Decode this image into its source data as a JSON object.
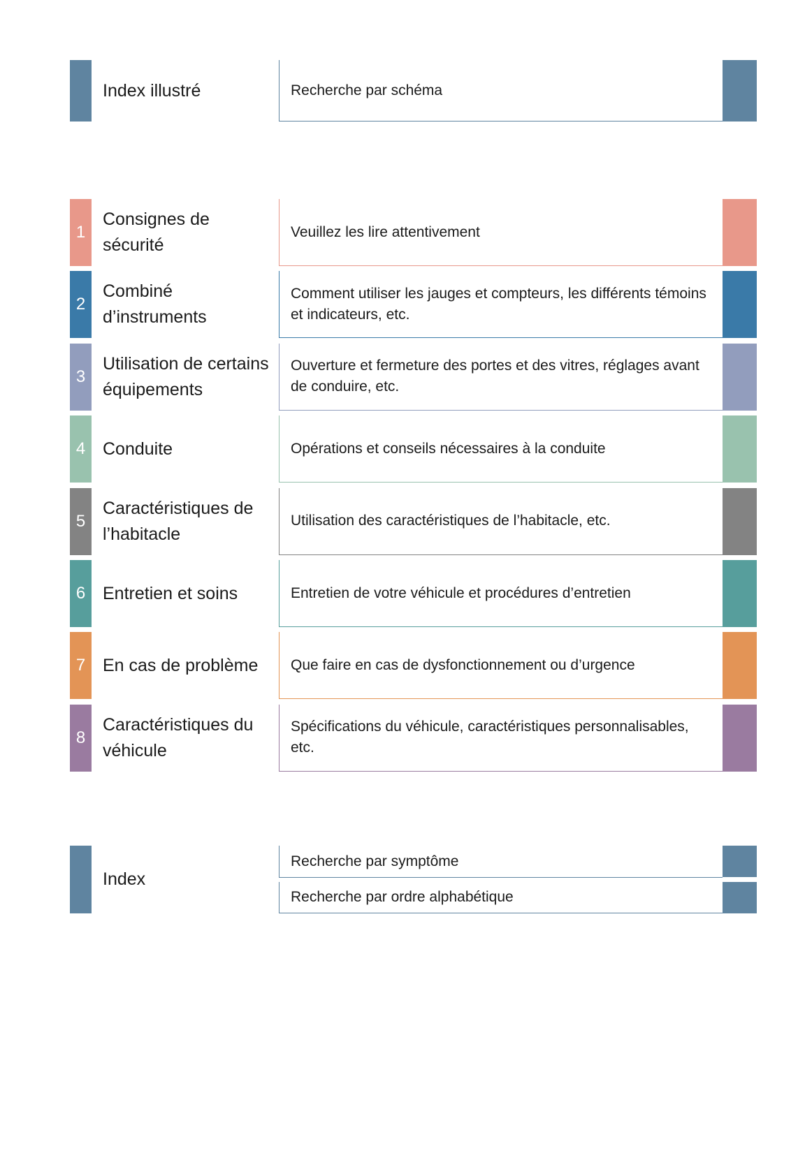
{
  "top": {
    "title": "Index illustré",
    "description": "Recherche par schéma",
    "color": "#5f84a0"
  },
  "sections": [
    {
      "number": "1",
      "title": "Consignes de sécurité",
      "description": "Veuillez les lire attentivement",
      "color": "#e8988a"
    },
    {
      "number": "2",
      "title": "Combiné d’instruments",
      "description": "Comment utiliser les jauges et compteurs, les différents témoins et indicateurs, etc.",
      "color": "#3a7aa8"
    },
    {
      "number": "3",
      "title": "Utilisation de certains équipements",
      "description": "Ouverture et fermeture des portes et des vitres, réglages avant de conduire, etc.",
      "color": "#929dbd"
    },
    {
      "number": "4",
      "title": "Conduite",
      "description": "Opérations et conseils nécessaires à la conduite",
      "color": "#99c2ae"
    },
    {
      "number": "5",
      "title": "Caractéristiques de l’habitacle",
      "description": "Utilisation des caractéristiques de l’habitacle, etc.",
      "color": "#838383"
    },
    {
      "number": "6",
      "title": "Entretien et soins",
      "description": "Entretien de votre véhicule et procédures d’entretien",
      "color": "#579e9c"
    },
    {
      "number": "7",
      "title": "En cas de problème",
      "description": "Que faire en cas de dysfonctionnement ou d’urgence",
      "color": "#e39456"
    },
    {
      "number": "8",
      "title": "Caractéristiques du véhicule",
      "description": "Spécifications du véhicule, caractéristiques personnalisables, etc.",
      "color": "#9a7ba0"
    }
  ],
  "index": {
    "title": "Index",
    "items": [
      "Recherche par symptôme",
      "Recherche par ordre alphabétique"
    ],
    "color": "#5f84a0"
  }
}
